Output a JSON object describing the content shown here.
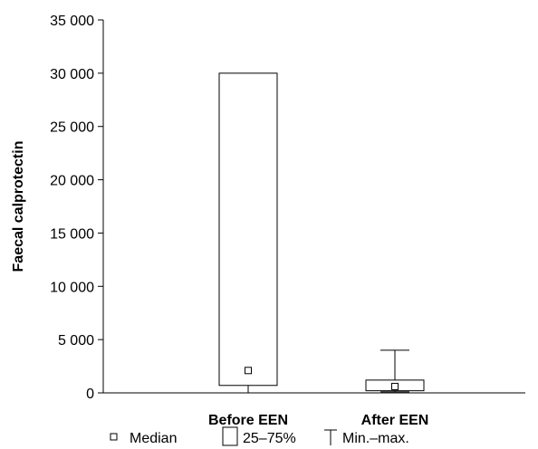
{
  "chart_data": {
    "type": "box",
    "title": "",
    "xlabel": "",
    "ylabel": "Faecal calprotectin",
    "ylim": [
      0,
      35000
    ],
    "yticks": [
      0,
      5000,
      10000,
      15000,
      20000,
      25000,
      30000,
      35000
    ],
    "ytick_labels": [
      "0",
      "5 000",
      "10 000",
      "15 000",
      "20 000",
      "25 000",
      "30 000",
      "35 000"
    ],
    "categories": [
      "Before EEN",
      "After EEN"
    ],
    "boxes": [
      {
        "category": "Before EEN",
        "min": 0,
        "q1": 700,
        "median": 2100,
        "q3": 30000,
        "max": 30000
      },
      {
        "category": "After EEN",
        "min": 100,
        "q1": 200,
        "median": 600,
        "q3": 1200,
        "max": 4000
      }
    ],
    "grid": false,
    "legend": {
      "position": "bottom",
      "items": [
        {
          "symbol": "median-marker",
          "label": "Median"
        },
        {
          "symbol": "box",
          "label": "25–75%"
        },
        {
          "symbol": "whisker",
          "label": "Min.–max."
        }
      ]
    }
  }
}
